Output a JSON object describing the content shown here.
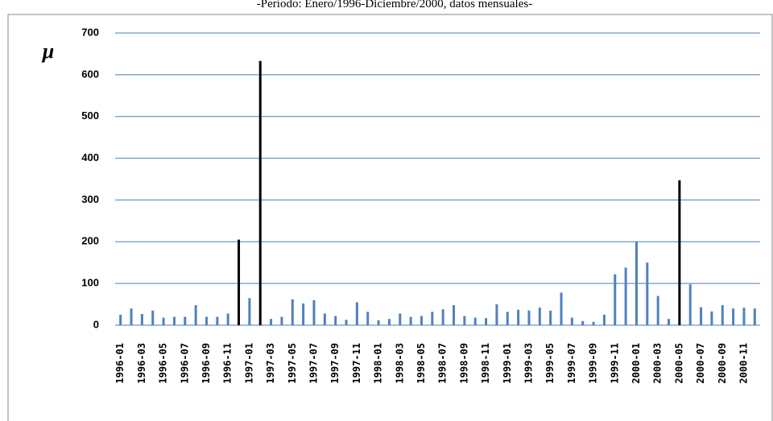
{
  "chart_data": {
    "type": "bar",
    "title": "-Período: Enero/1996-Diciembre/2000, datos mensuales-",
    "y_label": "μ",
    "categories": [
      "1996-01",
      null,
      "1996-03",
      null,
      "1996-05",
      null,
      "1996-07",
      null,
      "1996-09",
      null,
      "1996-11",
      null,
      "1997-01",
      null,
      "1997-03",
      null,
      "1997-05",
      null,
      "1997-07",
      null,
      "1997-09",
      null,
      "1997-11",
      null,
      "1998-01",
      null,
      "1998-03",
      null,
      "1998-05",
      null,
      "1998-07",
      null,
      "1998-09",
      null,
      "1998-11",
      null,
      "1999-01",
      null,
      "1999-03",
      null,
      "1999-05",
      null,
      "1999-07",
      null,
      "1999-09",
      null,
      "1999-11",
      null,
      "2000-01",
      null,
      "2000-03",
      null,
      "2000-05",
      null,
      "2000-07",
      null,
      "2000-09",
      null,
      "2000-11",
      null
    ],
    "values": [
      25,
      40,
      27,
      35,
      18,
      20,
      20,
      48,
      20,
      20,
      28,
      205,
      65,
      633,
      15,
      20,
      62,
      52,
      60,
      28,
      22,
      13,
      55,
      32,
      12,
      15,
      28,
      20,
      22,
      32,
      38,
      48,
      22,
      18,
      17,
      50,
      32,
      37,
      35,
      42,
      35,
      78,
      18,
      10,
      8,
      25,
      122,
      138,
      200,
      150,
      70,
      15,
      347,
      98,
      43,
      33,
      48,
      40,
      42,
      40
    ],
    "color": "#4f81bd",
    "highlight_color": "#000000",
    "highlighted": [
      "1996-12",
      "1997-02",
      "2000-05"
    ],
    "ylim": [
      0,
      700
    ],
    "yticks": [
      0,
      100,
      200,
      300,
      400,
      500,
      600,
      700
    ],
    "grid": true
  }
}
